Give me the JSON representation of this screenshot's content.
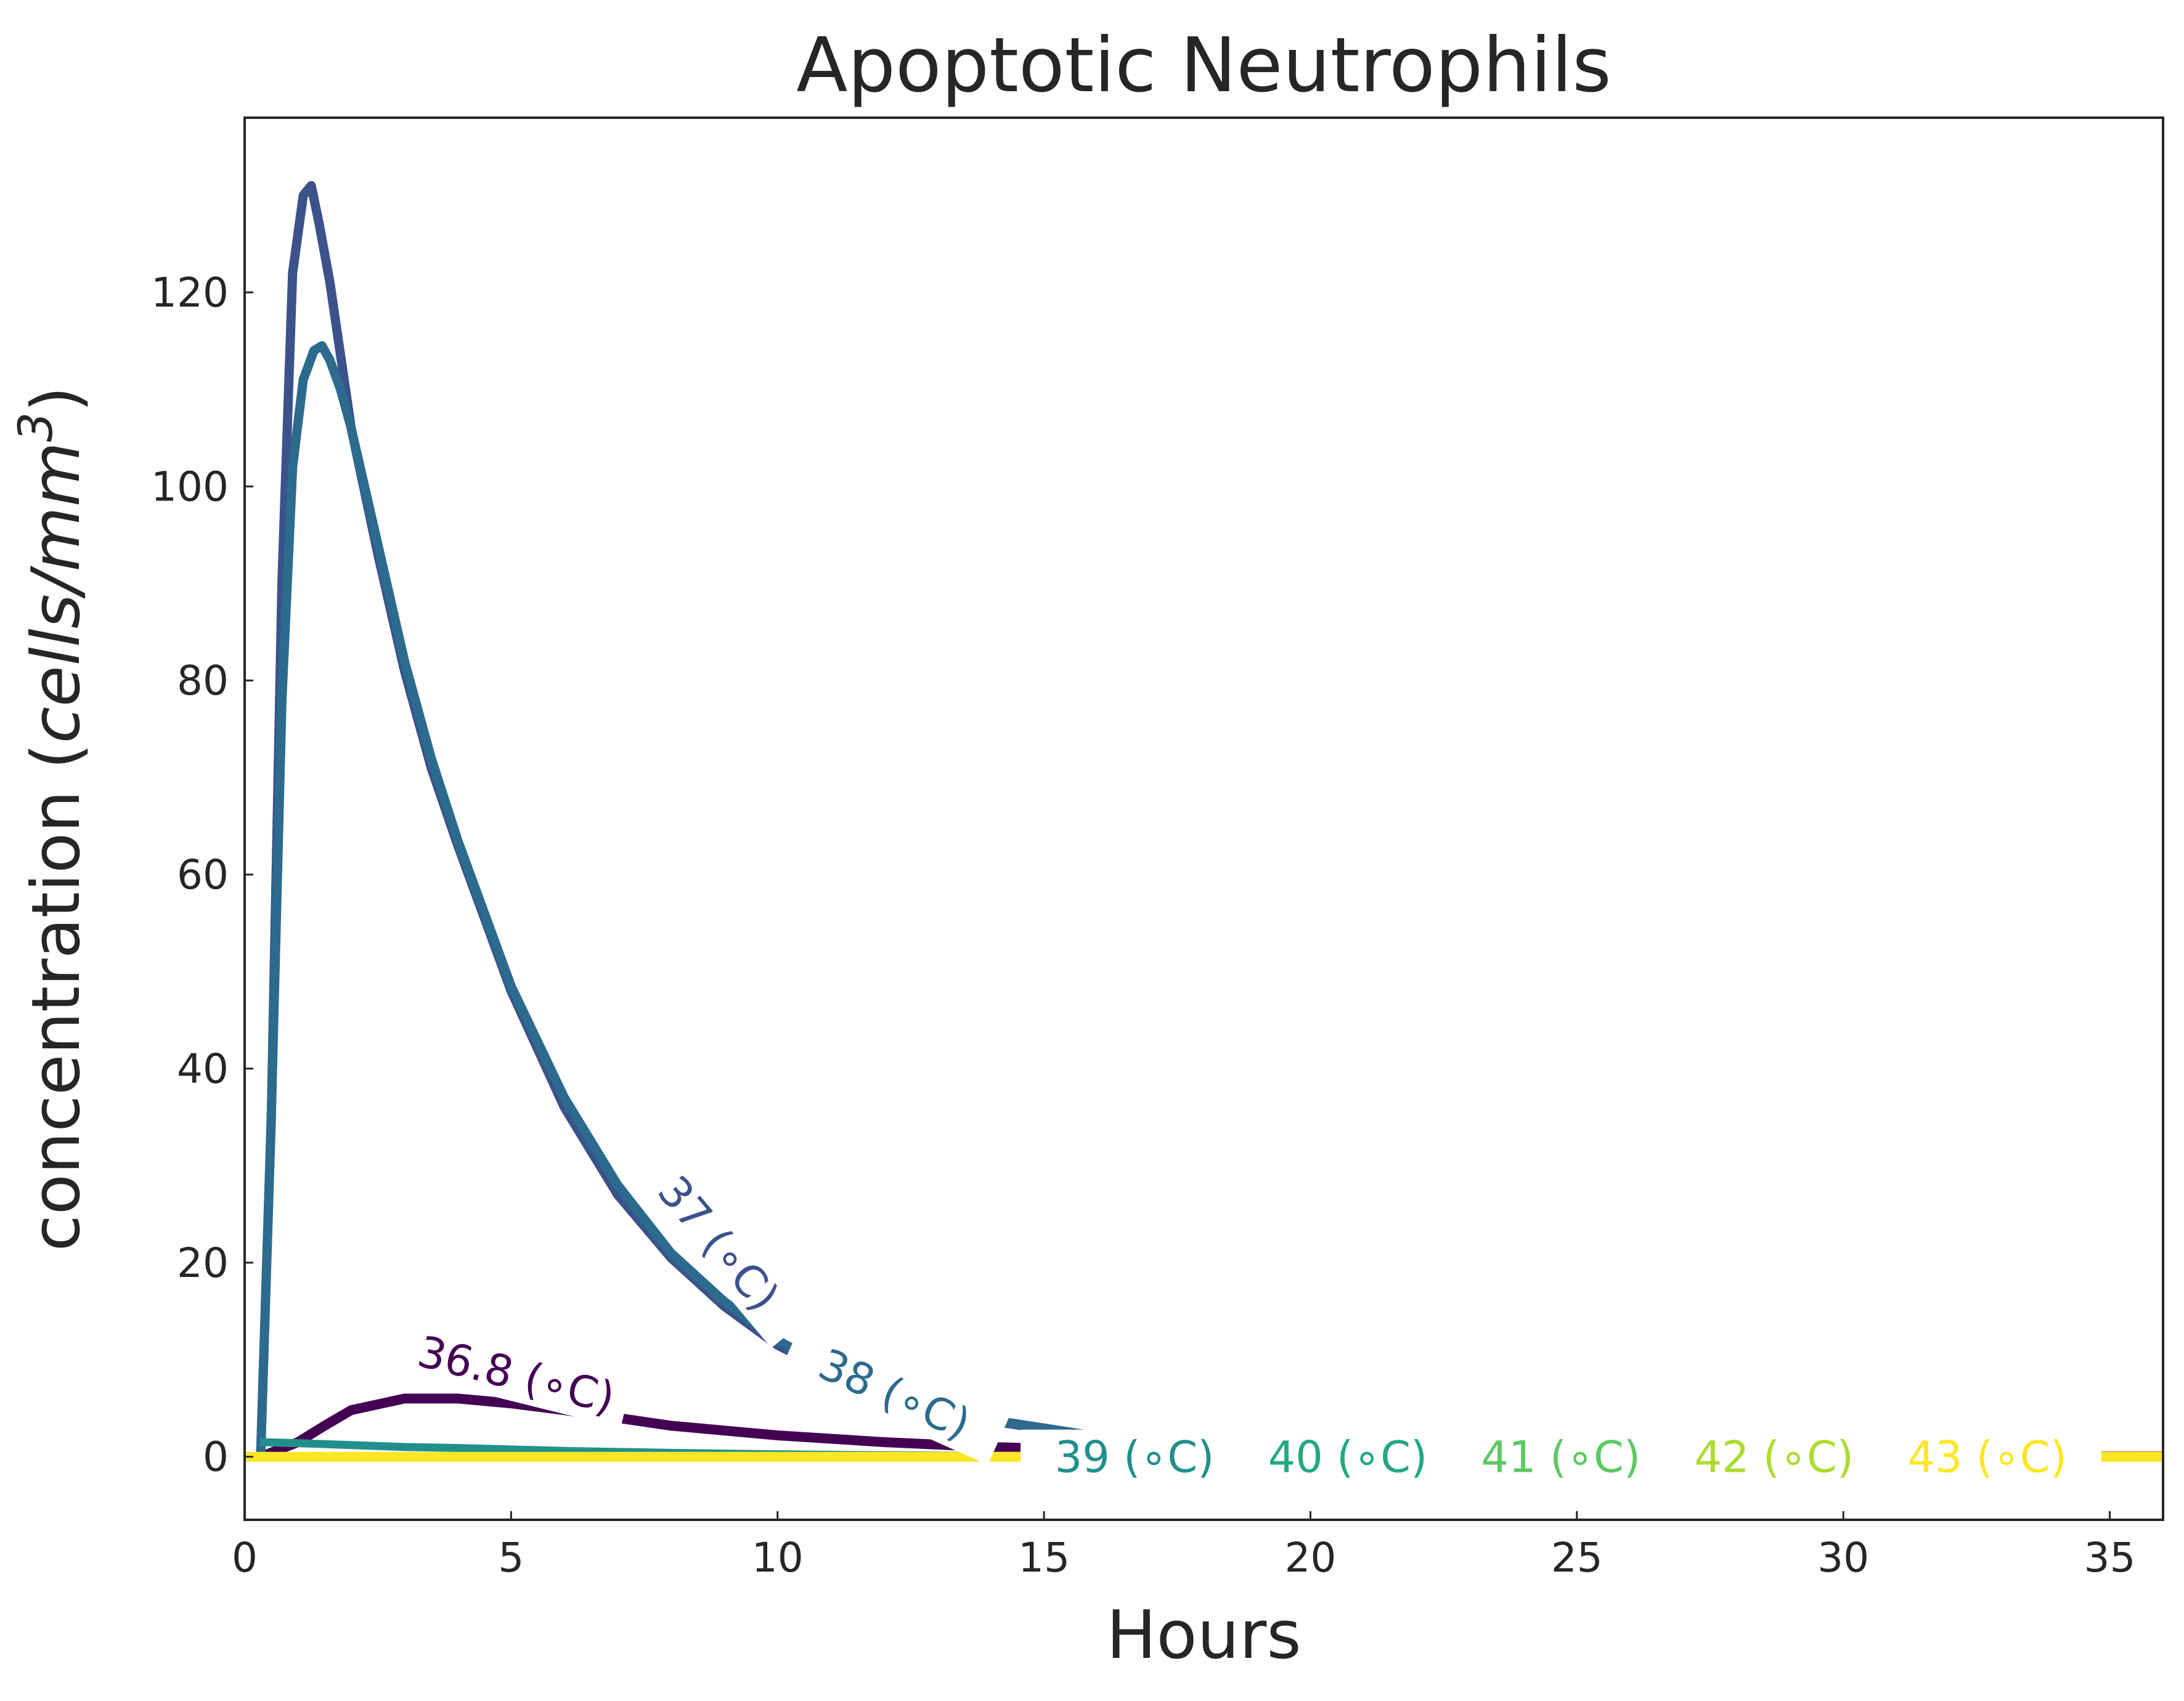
{
  "chart_data": {
    "type": "line",
    "title": "Apoptotic Neutrophils",
    "xlabel": "Hours",
    "ylabel": "concentration (cells/mm³)",
    "ylabel_parts": {
      "plain": "concentration (",
      "italic": "cells/mm",
      "sup": "3",
      "close": ")"
    },
    "xlim": [
      0,
      36
    ],
    "ylim": [
      -6.5,
      138
    ],
    "xticks": [
      0,
      5,
      10,
      15,
      20,
      25,
      30,
      35
    ],
    "yticks": [
      0,
      20,
      40,
      60,
      80,
      100,
      120
    ],
    "grid": false,
    "legend": "none (inline curve labels)",
    "series": [
      {
        "name": "36.8 (°C)",
        "label": "36.8 (∘C)",
        "color": "#440154",
        "x": [
          0.3,
          1.0,
          1.5,
          2.0,
          3.0,
          4.0,
          5.0,
          6.0,
          7.0,
          8.0,
          10.0,
          12.0,
          14.0,
          16.0,
          20.0,
          25.0,
          30.0,
          36.0
        ],
        "y": [
          0,
          1.5,
          3.2,
          4.8,
          6.0,
          6.0,
          5.5,
          4.8,
          4.0,
          3.2,
          2.2,
          1.5,
          1.0,
          0.7,
          0.3,
          0.1,
          0.05,
          0.02
        ]
      },
      {
        "name": "37 (°C)",
        "label": "37 (∘C)",
        "color": "#3b528b",
        "x": [
          0.3,
          0.5,
          0.7,
          0.9,
          1.1,
          1.25,
          1.4,
          1.6,
          2.0,
          2.5,
          3.0,
          3.5,
          4.0,
          5.0,
          6.0,
          7.0,
          8.0,
          9.0,
          10.0,
          11.0,
          12.0,
          13.0,
          14.0,
          16.0,
          18.0,
          20.0,
          24.0,
          30.0,
          36.0
        ],
        "y": [
          0,
          35,
          90,
          122,
          130,
          131,
          127,
          121,
          106,
          93,
          81,
          71,
          63,
          48,
          36,
          27,
          20.5,
          15.5,
          11.5,
          8.7,
          6.5,
          4.9,
          3.7,
          2.0,
          1.1,
          0.6,
          0.2,
          0.05,
          0.01
        ]
      },
      {
        "name": "38 (°C)",
        "label": "38 (∘C)",
        "color": "#2c6b8e",
        "x": [
          0.3,
          0.5,
          0.7,
          0.9,
          1.1,
          1.3,
          1.45,
          1.6,
          1.8,
          2.0,
          2.5,
          3.0,
          3.5,
          4.0,
          5.0,
          6.0,
          7.0,
          8.0,
          9.0,
          10.0,
          11.0,
          12.0,
          13.0,
          14.0,
          16.0,
          18.0,
          20.0,
          24.0,
          30.0,
          36.0
        ],
        "y": [
          0,
          35,
          78,
          102,
          111,
          114,
          114.5,
          113,
          110,
          106,
          94,
          82,
          72,
          63.5,
          48.5,
          37,
          28,
          21,
          16,
          12,
          9,
          6.8,
          5.1,
          3.8,
          2.1,
          1.2,
          0.6,
          0.2,
          0.05,
          0.01
        ]
      },
      {
        "name": "39 (°C)",
        "label": "39 (∘C)",
        "color": "#21908d",
        "x": [
          0.3,
          1.0,
          2.0,
          3.0,
          4.0,
          5.0,
          6.0,
          8.0,
          10.0,
          12.0,
          14.0,
          20.0,
          36.0
        ],
        "y": [
          1.5,
          1.4,
          1.2,
          1.0,
          0.9,
          0.75,
          0.6,
          0.4,
          0.25,
          0.15,
          0.1,
          0.02,
          0
        ]
      },
      {
        "name": "40 (°C)",
        "label": "40 (∘C)",
        "color": "#22a884",
        "x": [
          0,
          36
        ],
        "y": [
          0,
          0
        ]
      },
      {
        "name": "41 (°C)",
        "label": "41 (∘C)",
        "color": "#5ec962",
        "x": [
          0,
          36
        ],
        "y": [
          0,
          0
        ]
      },
      {
        "name": "42 (°C)",
        "label": "42 (∘C)",
        "color": "#addc30",
        "x": [
          0,
          36
        ],
        "y": [
          0,
          0
        ]
      },
      {
        "name": "43 (°C)",
        "label": "43 (∘C)",
        "color": "#fde725",
        "x": [
          0,
          36
        ],
        "y": [
          0,
          0
        ]
      }
    ]
  }
}
